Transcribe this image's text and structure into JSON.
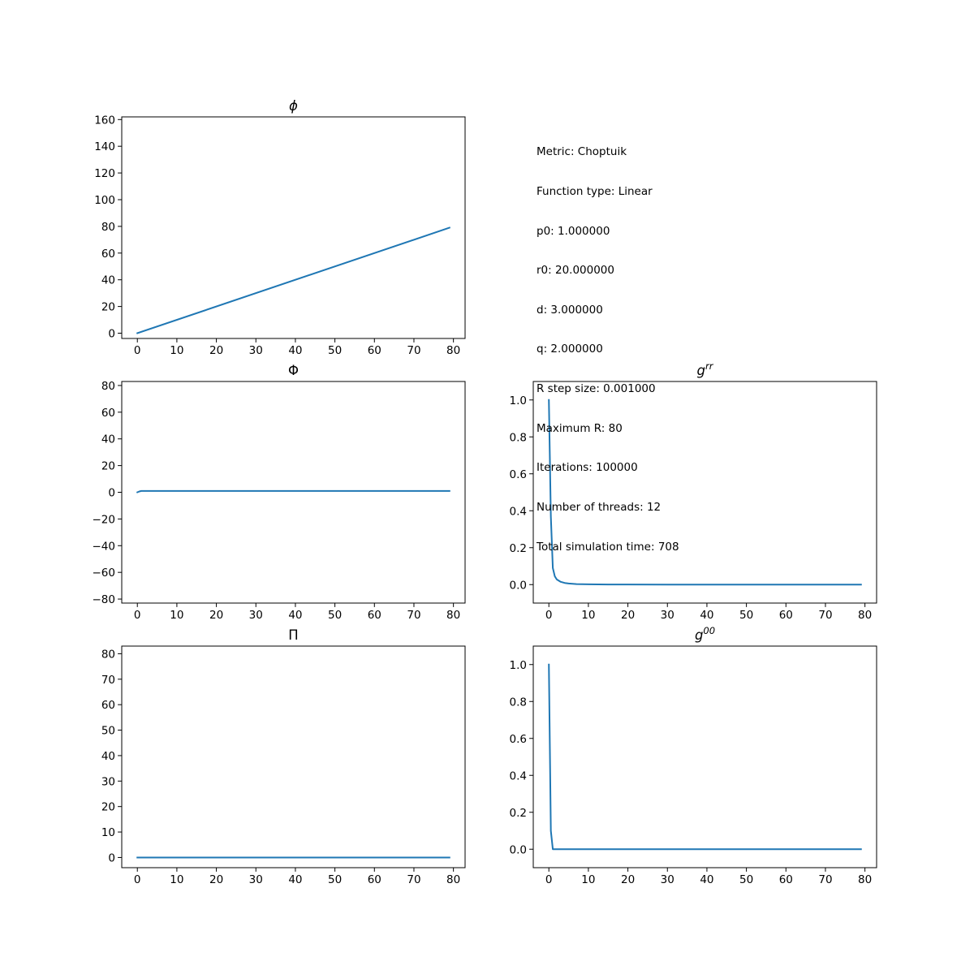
{
  "info": {
    "lines": [
      "Metric: Choptuik",
      "Function type: Linear",
      "p0: 1.000000",
      "r0: 20.000000",
      "d: 3.000000",
      "q: 2.000000",
      "R step size: 0.001000",
      "Maximum R: 80",
      "Iterations: 100000",
      "Number of threads: 12",
      "Total simulation time: 708"
    ]
  },
  "colors": {
    "line": "#1f77b4",
    "axes": "#000000",
    "background": "#ffffff"
  },
  "chart_data": [
    {
      "type": "line",
      "id": "phi",
      "title": "ϕ",
      "title_style": "italic",
      "xlabel": "",
      "ylabel": "",
      "xlim": [
        -3.95,
        82.95
      ],
      "ylim": [
        -3.95,
        162.0
      ],
      "xticks": [
        0,
        10,
        20,
        30,
        40,
        50,
        60,
        70,
        80
      ],
      "yticks": [
        0,
        20,
        40,
        60,
        80,
        100,
        120,
        140,
        160
      ],
      "series": [
        {
          "x": [
            0,
            79
          ],
          "y": [
            0,
            79
          ]
        }
      ]
    },
    {
      "type": "line",
      "id": "Phi",
      "title": "Φ",
      "title_style": "normal",
      "xlabel": "",
      "ylabel": "",
      "xlim": [
        -3.95,
        82.95
      ],
      "ylim": [
        -83,
        83
      ],
      "xticks": [
        0,
        10,
        20,
        30,
        40,
        50,
        60,
        70,
        80
      ],
      "yticks": [
        -80,
        -60,
        -40,
        -20,
        0,
        20,
        40,
        60,
        80
      ],
      "series": [
        {
          "x": [
            0,
            0.5,
            1,
            2,
            5,
            10,
            20,
            40,
            60,
            79
          ],
          "y": [
            0,
            0.6,
            1,
            1,
            1,
            1,
            1,
            1,
            1,
            1
          ]
        }
      ]
    },
    {
      "type": "line",
      "id": "grr",
      "title": "g",
      "title_sup": "rr",
      "title_style": "italic",
      "xlabel": "",
      "ylabel": "",
      "xlim": [
        -3.95,
        82.95
      ],
      "ylim": [
        -0.1,
        1.1
      ],
      "xticks": [
        0,
        10,
        20,
        30,
        40,
        50,
        60,
        70,
        80
      ],
      "yticks": [
        0.0,
        0.2,
        0.4,
        0.6,
        0.8,
        1.0
      ],
      "yticklabels": [
        "0.0",
        "0.2",
        "0.4",
        "0.6",
        "0.8",
        "1.0"
      ],
      "series": [
        {
          "x": [
            0,
            0.5,
            1,
            1.5,
            2,
            3,
            4,
            5,
            7,
            10,
            15,
            20,
            30,
            40,
            50,
            60,
            70,
            79
          ],
          "y": [
            1.0,
            0.37,
            0.09,
            0.045,
            0.028,
            0.015,
            0.009,
            0.006,
            0.003,
            0.0015,
            0.0007,
            0.0004,
            0.0002,
            0.0001,
            0.0001,
            0.0,
            0.0,
            0.0
          ]
        }
      ]
    },
    {
      "type": "line",
      "id": "Pi",
      "title": "Π",
      "title_style": "normal",
      "xlabel": "",
      "ylabel": "",
      "xlim": [
        -3.95,
        82.95
      ],
      "ylim": [
        -4,
        83
      ],
      "xticks": [
        0,
        10,
        20,
        30,
        40,
        50,
        60,
        70,
        80
      ],
      "yticks": [
        0,
        10,
        20,
        30,
        40,
        50,
        60,
        70,
        80
      ],
      "series": [
        {
          "x": [
            0,
            79
          ],
          "y": [
            0,
            0
          ]
        }
      ]
    },
    {
      "type": "line",
      "id": "g00",
      "title": "g",
      "title_sup": "00",
      "title_style": "italic",
      "xlabel": "",
      "ylabel": "",
      "xlim": [
        -3.95,
        82.95
      ],
      "ylim": [
        -0.1,
        1.1
      ],
      "xticks": [
        0,
        10,
        20,
        30,
        40,
        50,
        60,
        70,
        80
      ],
      "yticks": [
        0.0,
        0.2,
        0.4,
        0.6,
        0.8,
        1.0
      ],
      "yticklabels": [
        "0.0",
        "0.2",
        "0.4",
        "0.6",
        "0.8",
        "1.0"
      ],
      "series": [
        {
          "x": [
            0,
            0.5,
            1,
            79
          ],
          "y": [
            1.0,
            0.1,
            0.0,
            0.0
          ]
        }
      ]
    }
  ]
}
